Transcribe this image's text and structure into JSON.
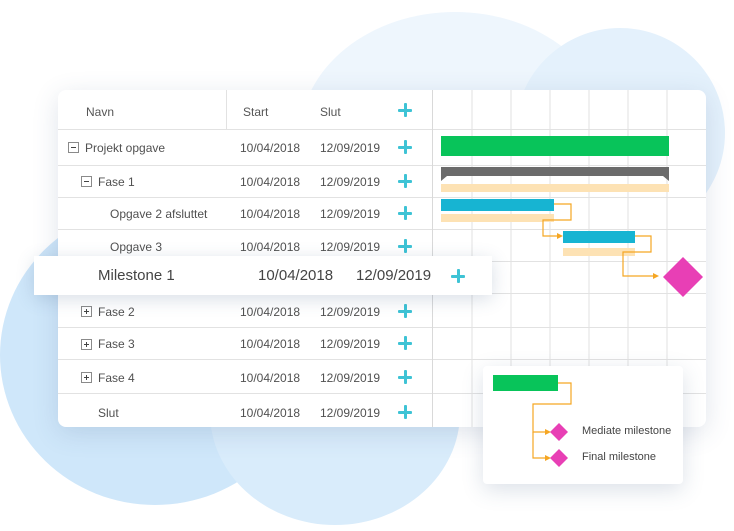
{
  "grid": {
    "headers": {
      "name": "Navn",
      "start": "Start",
      "end": "Slut"
    },
    "rows": [
      {
        "name": "Projekt opgave",
        "start": "10/04/2018",
        "end": "12/09/2019"
      },
      {
        "name": "Fase 1",
        "start": "10/04/2018",
        "end": "12/09/2019"
      },
      {
        "name": "Opgave 2 afsluttet",
        "start": "10/04/2018",
        "end": "12/09/2019"
      },
      {
        "name": "Opgave 3",
        "start": "10/04/2018",
        "end": "12/09/2019"
      },
      {
        "name": "Fase 2",
        "start": "10/04/2018",
        "end": "12/09/2019"
      },
      {
        "name": "Fase 3",
        "start": "10/04/2018",
        "end": "12/09/2019"
      },
      {
        "name": "Fase 4",
        "start": "10/04/2018",
        "end": "12/09/2019"
      },
      {
        "name": "Slut",
        "start": "10/04/2018",
        "end": "12/09/2019"
      }
    ],
    "highlighted": {
      "name": "Milestone 1",
      "start": "10/04/2018",
      "end": "12/09/2019"
    }
  },
  "legend": {
    "mediate": "Mediate milestone",
    "final": "Final milestone"
  },
  "colors": {
    "summary_bar": "#08c45a",
    "phase_bar": "#6b6b6b",
    "task_bar": "#17b4d2",
    "baseline_bar": "#fde2b4",
    "connector": "#f5a623",
    "milestone": "#e83fb5",
    "add_icon": "#3ec3d5"
  },
  "icons": [
    "add-icon",
    "collapse-icon",
    "expand-icon",
    "milestone-diamond-icon"
  ]
}
